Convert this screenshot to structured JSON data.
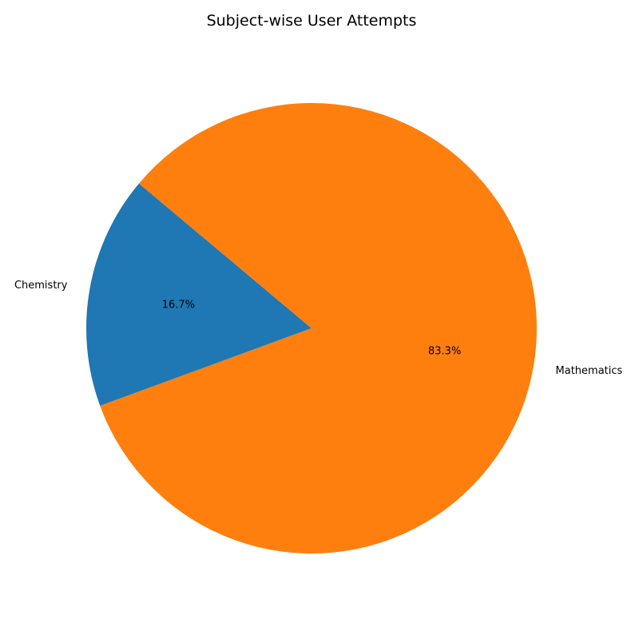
{
  "chart_data": {
    "type": "pie",
    "title": "Subject-wise User Attempts",
    "categories": [
      "Chemistry",
      "Mathematics"
    ],
    "values": [
      16.7,
      83.3
    ],
    "percent_labels": [
      "16.7%",
      "83.3%"
    ],
    "colors": [
      "#1f77b4",
      "#ff7f0e"
    ],
    "start_angle_deg": 140,
    "direction": "counterclockwise",
    "legend": "none"
  }
}
